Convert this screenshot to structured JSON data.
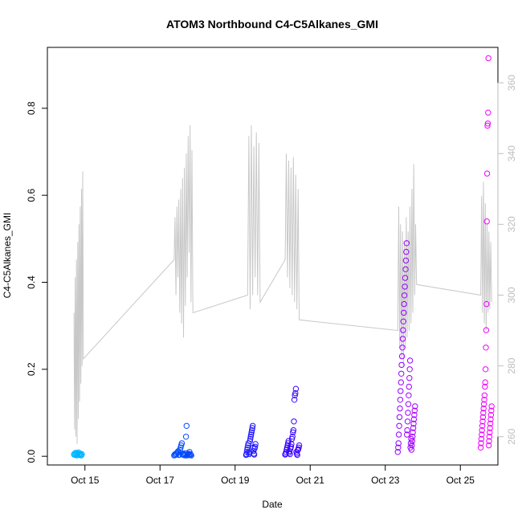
{
  "chart_data": {
    "type": "scatter",
    "title": "ATOM3 Northbound C4-C5Alkanes_GMI",
    "xlabel": "Date",
    "ylabel": "C4-C5Alkanes_GMI",
    "xlim": [
      "2016-10-14",
      "2016-10-26"
    ],
    "ylim": [
      -0.02,
      0.94
    ],
    "x_ticks": [
      "Oct 15",
      "Oct 17",
      "Oct 19",
      "Oct 21",
      "Oct 23",
      "Oct 25"
    ],
    "x_tick_dates": [
      "2016-10-15",
      "2016-10-17",
      "2016-10-19",
      "2016-10-21",
      "2016-10-23",
      "2016-10-25"
    ],
    "y_ticks": [
      0.0,
      0.2,
      0.4,
      0.6,
      0.8
    ],
    "y2_ticks": [
      260,
      280,
      300,
      320,
      340,
      360
    ],
    "y2_lim": [
      252,
      370
    ],
    "grid": false,
    "series": [
      {
        "marker": "open-circle",
        "color_scale": [
          "#00bfff",
          "#0050ff",
          "#3000ff",
          "#8a00ff",
          "#ff00ff"
        ],
        "clusters": [
          {
            "x_range": [
              "2016-10-14 17:00",
              "2016-10-14 22:00"
            ],
            "values": [
              0.004,
              0.006,
              0.003,
              0.008,
              0.005,
              0.002,
              0.007,
              0.004,
              0.009,
              0.003,
              0.005,
              0.006,
              0.004,
              0.002,
              0.005
            ]
          },
          {
            "x_range": [
              "2016-10-17 09:00",
              "2016-10-17 20:00"
            ],
            "values": [
              0.002,
              0.004,
              0.003,
              0.006,
              0.005,
              0.008,
              0.01,
              0.012,
              0.003,
              0.004,
              0.015,
              0.02,
              0.025,
              0.03,
              0.004,
              0.006,
              0.005,
              0.003,
              0.002,
              0.007,
              0.045,
              0.07,
              0.002,
              0.004,
              0.006,
              0.003,
              0.01,
              0.005,
              0.004,
              0.002
            ]
          },
          {
            "x_range": [
              "2016-10-19 07:00",
              "2016-10-19 13:00"
            ],
            "values": [
              0.003,
              0.005,
              0.01,
              0.015,
              0.02,
              0.025,
              0.03,
              0.01,
              0.005,
              0.008,
              0.035,
              0.04,
              0.045,
              0.05,
              0.055,
              0.06,
              0.065,
              0.07,
              0.02,
              0.012,
              0.006,
              0.004,
              0.018,
              0.022,
              0.028
            ]
          },
          {
            "x_range": [
              "2016-10-20 08:00",
              "2016-10-20 17:00"
            ],
            "values": [
              0.004,
              0.006,
              0.01,
              0.015,
              0.02,
              0.025,
              0.03,
              0.035,
              0.008,
              0.012,
              0.005,
              0.018,
              0.022,
              0.028,
              0.04,
              0.045,
              0.055,
              0.06,
              0.08,
              0.13,
              0.14,
              0.145,
              0.155,
              0.01,
              0.006,
              0.003,
              0.014,
              0.016,
              0.02,
              0.025
            ]
          },
          {
            "x_range": [
              "2016-10-23 08:00",
              "2016-10-23 19:00"
            ],
            "values": [
              0.01,
              0.02,
              0.03,
              0.05,
              0.07,
              0.09,
              0.11,
              0.13,
              0.15,
              0.17,
              0.19,
              0.21,
              0.23,
              0.25,
              0.27,
              0.29,
              0.31,
              0.33,
              0.35,
              0.37,
              0.39,
              0.41,
              0.43,
              0.45,
              0.47,
              0.49,
              0.05,
              0.06,
              0.08,
              0.1,
              0.12,
              0.14,
              0.16,
              0.18,
              0.2,
              0.22,
              0.02,
              0.03,
              0.04,
              0.015,
              0.025,
              0.035,
              0.045,
              0.055,
              0.065,
              0.075,
              0.085,
              0.095,
              0.105,
              0.115
            ]
          },
          {
            "x_range": [
              "2016-10-25 13:00",
              "2016-10-25 20:00"
            ],
            "values": [
              0.02,
              0.03,
              0.04,
              0.05,
              0.06,
              0.07,
              0.08,
              0.09,
              0.1,
              0.11,
              0.12,
              0.13,
              0.14,
              0.16,
              0.17,
              0.2,
              0.25,
              0.29,
              0.35,
              0.54,
              0.65,
              0.76,
              0.765,
              0.79,
              0.915,
              0.025,
              0.035,
              0.045,
              0.055,
              0.065,
              0.075,
              0.085,
              0.095,
              0.105,
              0.115
            ]
          }
        ]
      },
      {
        "name": "",
        "axis": "right",
        "color": "#c8c8c8",
        "style": "line",
        "segments": [
          {
            "x_range": [
              "2016-10-14 17:00",
              "2016-10-14 23:00"
            ],
            "values": [
              295,
              262,
              305,
              260,
              310,
              258,
              315,
              265,
              320,
              270,
              325,
              275,
              330,
              280,
              335,
              282
            ]
          },
          {
            "x_range": [
              "2016-10-17 09:00",
              "2016-10-17 21:00"
            ],
            "values": [
              310,
              322,
              300,
              325,
              305,
              327,
              295,
              330,
              292,
              333,
              288,
              336,
              297,
              340,
              305,
              345,
              312,
              348,
              298,
              341,
              295
            ]
          },
          {
            "x_range": [
              "2016-10-19 08:00",
              "2016-10-19 16:00"
            ],
            "values": [
              300,
              345,
              296,
              348,
              300,
              342,
              305,
              346,
              300,
              343,
              298
            ]
          },
          {
            "x_range": [
              "2016-10-20 08:00",
              "2016-10-20 17:00"
            ],
            "values": [
              310,
              340,
              305,
              338,
              302,
              336,
              300,
              339,
              298,
              334,
              296,
              330,
              293
            ]
          },
          {
            "x_range": [
              "2016-10-23 08:00",
              "2016-10-23 20:00"
            ],
            "values": [
              290,
              325,
              285,
              320,
              282,
              318,
              280,
              315,
              285,
              322,
              288,
              318,
              290,
              325,
              292,
              330,
              295,
              337,
              300,
              320,
              303
            ]
          },
          {
            "x_range": [
              "2016-10-25 13:00",
              "2016-10-25 20:00"
            ],
            "values": [
              300,
              328,
              295,
              332,
              292,
              326,
              290,
              320,
              295,
              318,
              296,
              315,
              298
            ]
          }
        ]
      }
    ]
  }
}
